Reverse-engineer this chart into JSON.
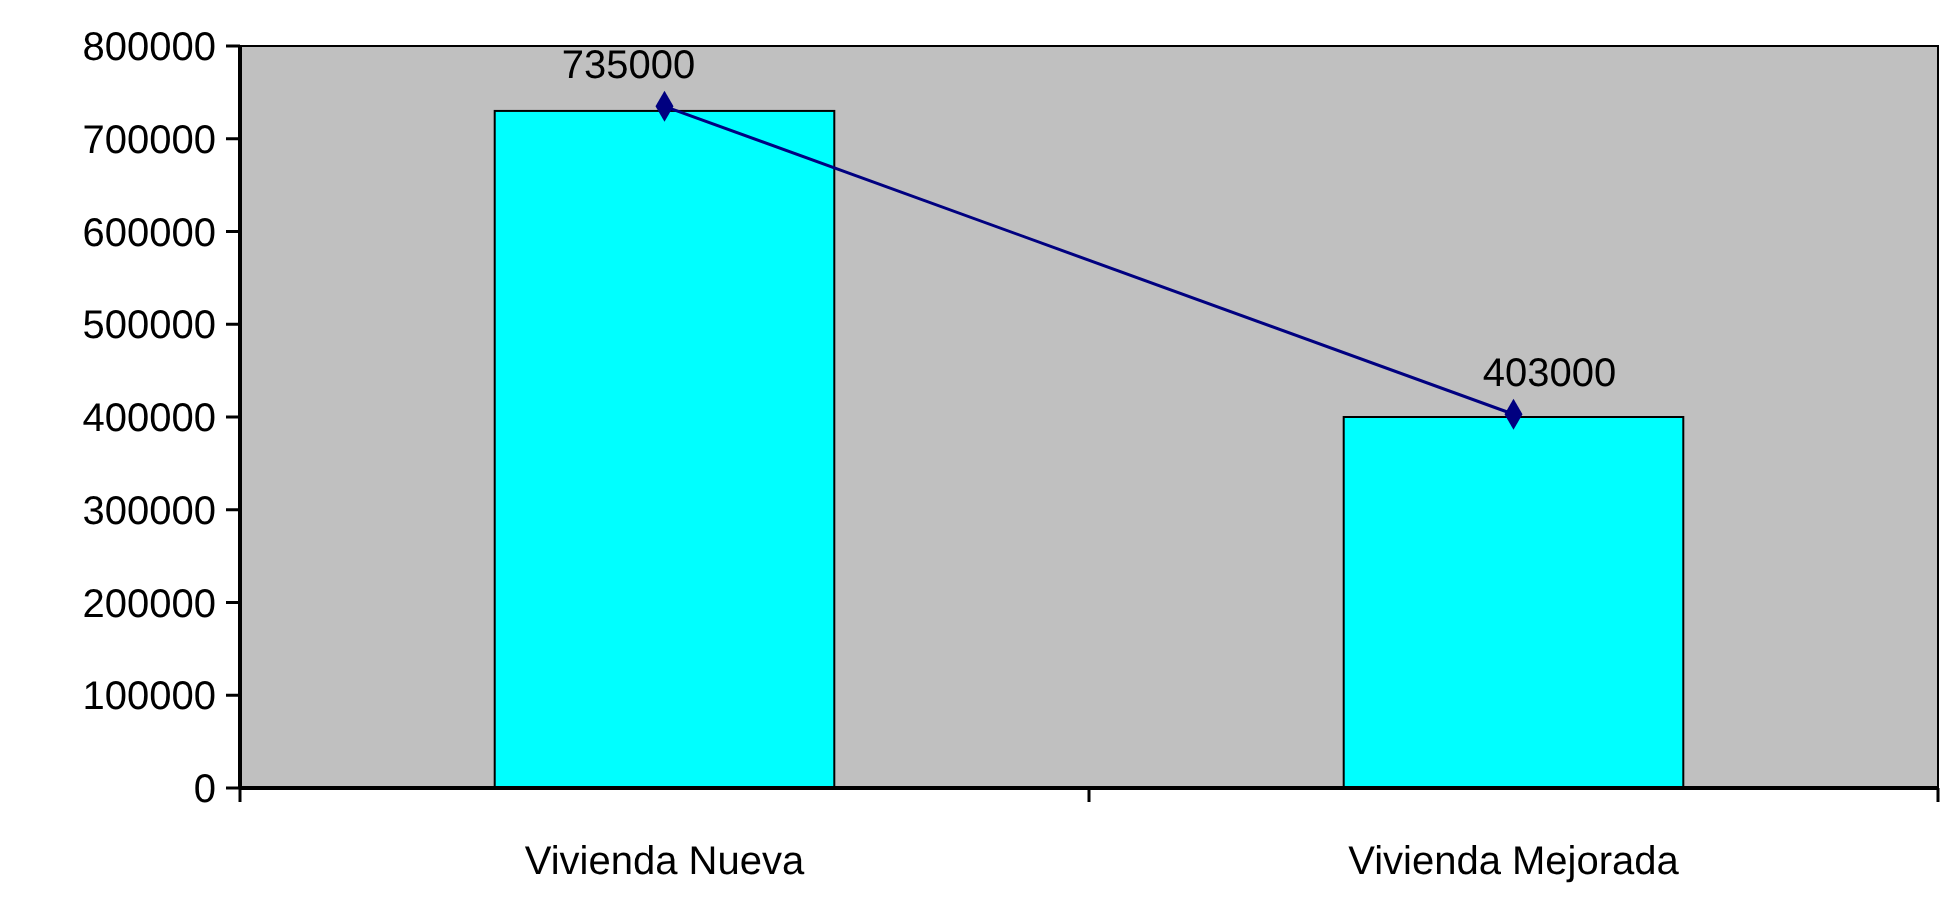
{
  "chart_data": {
    "type": "bar",
    "categories": [
      "Vivienda Nueva",
      "Vivienda Mejorada"
    ],
    "series": [
      {
        "color": "#00ffff",
        "values": [
          730000,
          400000
        ]
      },
      {
        "type": "line",
        "color": "#000080",
        "values": [
          735000,
          403000
        ],
        "value_labels": [
          "735000",
          "403000"
        ]
      }
    ],
    "ylim": [
      0,
      800000
    ],
    "yticks": [
      0,
      100000,
      200000,
      300000,
      400000,
      500000,
      600000,
      700000,
      800000
    ],
    "grid": false,
    "marker": "diamond",
    "line_style": "solid"
  }
}
